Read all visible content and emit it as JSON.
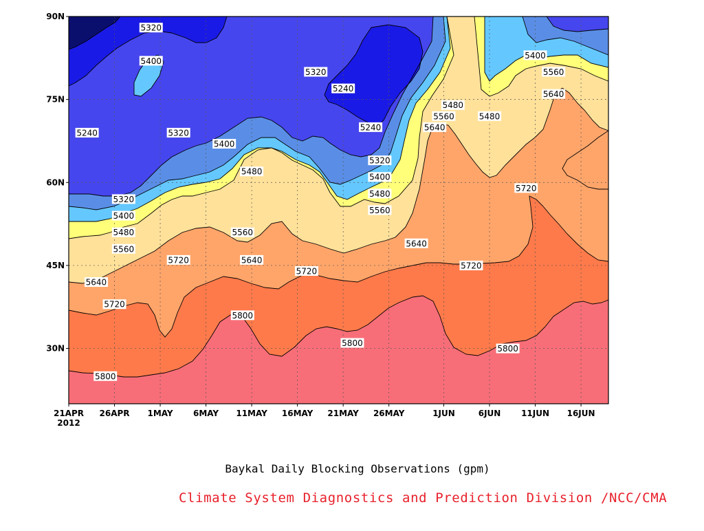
{
  "chart_data": {
    "type": "heatmap",
    "title": "Baykal Daily Blocking Observations (gpm)",
    "source": "Climate System Diagnostics and Prediction Division /NCC/CMA",
    "x_tick_labels": [
      "21APR",
      "26APR",
      "1MAY",
      "6MAY",
      "11MAY",
      "16MAY",
      "21MAY",
      "26MAY",
      "1JUN",
      "6JUN",
      "11JUN",
      "16JUN"
    ],
    "x_start_year": "2012",
    "x_range": [
      "2012-04-21",
      "2012-06-19"
    ],
    "y_tick_labels": [
      "30N",
      "45N",
      "60N",
      "75N",
      "90N"
    ],
    "y_range": [
      20,
      90
    ],
    "contour_levels": [
      5240,
      5320,
      5400,
      5480,
      5560,
      5640,
      5720,
      5800
    ],
    "colors": {
      "below_5240": "#0a0f6e",
      "5240_5320": "#1a1ae6",
      "5320_5400": "#4646ee",
      "5400_5480": "#5a8ee6",
      "5480_5560": "#64c8ff",
      "5560_5640": "#ffff7a",
      "5640_5720": "#ffe19a",
      "5720_5800": "#ffa56a",
      "above_5800": "#f76e78",
      "title_text": "#000000",
      "credit_text": "#e8202a"
    },
    "contour_labels": [
      {
        "level": "5320",
        "date": "2012-04-30",
        "lat": 88
      },
      {
        "level": "5400",
        "date": "2012-04-30",
        "lat": 82
      },
      {
        "level": "5240",
        "date": "2012-04-23",
        "lat": 69
      },
      {
        "level": "5320",
        "date": "2012-05-03",
        "lat": 69
      },
      {
        "level": "5320",
        "date": "2012-05-18",
        "lat": 80
      },
      {
        "level": "5240",
        "date": "2012-05-21",
        "lat": 77
      },
      {
        "level": "5240",
        "date": "2012-05-24",
        "lat": 70
      },
      {
        "level": "5400",
        "date": "2012-05-08",
        "lat": 67
      },
      {
        "level": "5320",
        "date": "2012-04-27",
        "lat": 57
      },
      {
        "level": "5400",
        "date": "2012-04-27",
        "lat": 54
      },
      {
        "level": "5480",
        "date": "2012-04-27",
        "lat": 51
      },
      {
        "level": "5560",
        "date": "2012-04-27",
        "lat": 48
      },
      {
        "level": "5640",
        "date": "2012-04-24",
        "lat": 42
      },
      {
        "level": "5720",
        "date": "2012-04-26",
        "lat": 38
      },
      {
        "level": "5800",
        "date": "2012-04-25",
        "lat": 25
      },
      {
        "level": "5720",
        "date": "2012-05-03",
        "lat": 46
      },
      {
        "level": "5480",
        "date": "2012-05-11",
        "lat": 62
      },
      {
        "level": "5560",
        "date": "2012-05-10",
        "lat": 51
      },
      {
        "level": "5640",
        "date": "2012-05-11",
        "lat": 46
      },
      {
        "level": "5720",
        "date": "2012-05-17",
        "lat": 44
      },
      {
        "level": "5800",
        "date": "2012-05-10",
        "lat": 36
      },
      {
        "level": "5800",
        "date": "2012-05-22",
        "lat": 31
      },
      {
        "level": "5320",
        "date": "2012-05-25",
        "lat": 64
      },
      {
        "level": "5400",
        "date": "2012-05-25",
        "lat": 61
      },
      {
        "level": "5480",
        "date": "2012-05-25",
        "lat": 58
      },
      {
        "level": "5560",
        "date": "2012-05-25",
        "lat": 55
      },
      {
        "level": "5640",
        "date": "2012-05-29",
        "lat": 49
      },
      {
        "level": "5480",
        "date": "2012-06-02",
        "lat": 74
      },
      {
        "level": "5560",
        "date": "2012-06-01",
        "lat": 72
      },
      {
        "level": "5640",
        "date": "2012-05-31",
        "lat": 70
      },
      {
        "level": "5480",
        "date": "2012-06-06",
        "lat": 72
      },
      {
        "level": "5400",
        "date": "2012-06-11",
        "lat": 83
      },
      {
        "level": "5560",
        "date": "2012-06-13",
        "lat": 80
      },
      {
        "level": "5640",
        "date": "2012-06-13",
        "lat": 76
      },
      {
        "level": "5720",
        "date": "2012-06-10",
        "lat": 59
      },
      {
        "level": "5720",
        "date": "2012-06-04",
        "lat": 45
      },
      {
        "level": "5800",
        "date": "2012-06-08",
        "lat": 30
      }
    ]
  }
}
